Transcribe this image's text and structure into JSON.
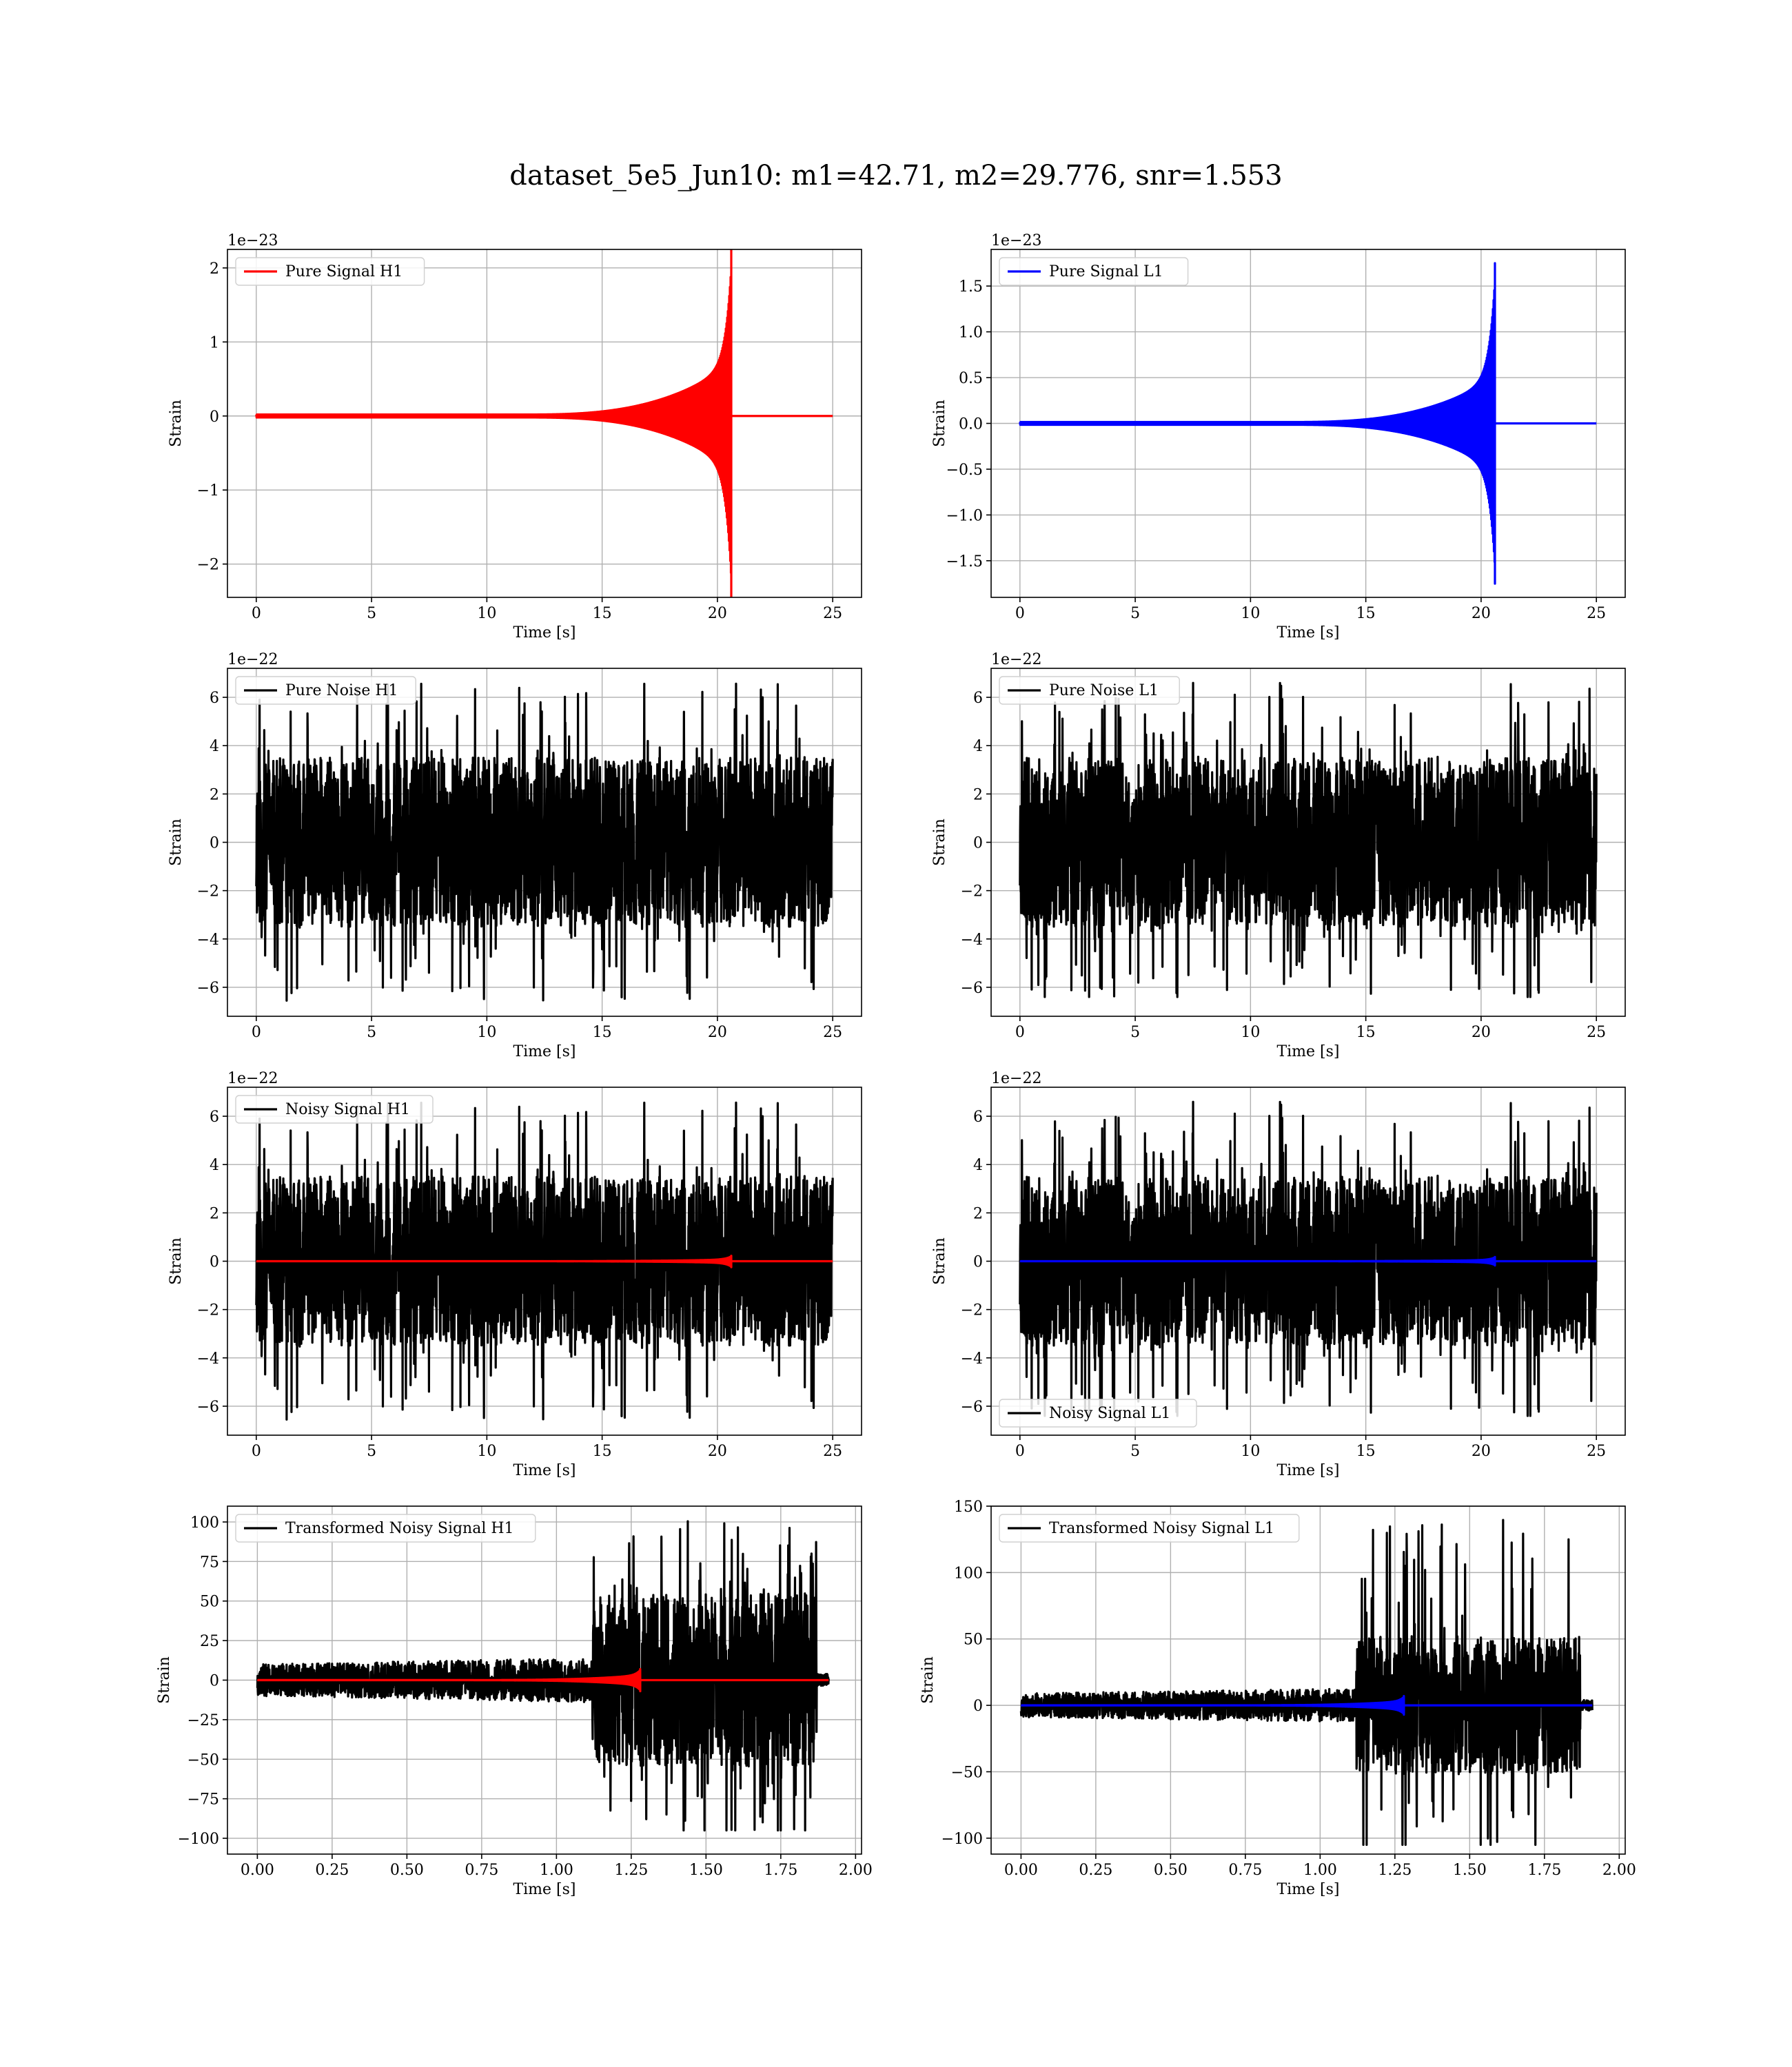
{
  "figure": {
    "suptitle": "dataset_5e5_Jun10: m1=42.71, m2=29.776, snr=1.553"
  },
  "colors": {
    "H1_signal": "#ff0000",
    "L1_signal": "#0000ff",
    "noise": "#000000",
    "grid": "#b0b0b0"
  },
  "chart_data": [
    {
      "id": "pure-signal-h1",
      "type": "line",
      "legend": [
        "Pure Signal H1"
      ],
      "legend_position": "upper-left",
      "xlabel": "Time [s]",
      "ylabel": "Strain",
      "offset_text": "1e−23",
      "xlim": [
        -1.25,
        26.25
      ],
      "ylim": [
        -2.45,
        2.25
      ],
      "xticks": [
        0,
        5,
        10,
        15,
        20,
        25
      ],
      "xtick_labels": [
        "0",
        "5",
        "10",
        "15",
        "20",
        "25"
      ],
      "yticks": [
        -2,
        -1,
        0,
        1,
        2
      ],
      "ytick_labels": [
        "−2",
        "−1",
        "0",
        "1",
        "2"
      ],
      "grid": true,
      "series": [
        {
          "color_key": "H1_signal",
          "kind": "chirp",
          "t_start": 0,
          "t_merge": 20.6,
          "t_end": 25,
          "peak_pos": 2.25,
          "peak_neg": -2.45,
          "early_amp": 0.02,
          "pre_merge_amp": 0.7
        }
      ]
    },
    {
      "id": "pure-signal-l1",
      "type": "line",
      "legend": [
        "Pure Signal L1"
      ],
      "legend_position": "upper-left",
      "xlabel": "Time [s]",
      "ylabel": "Strain",
      "offset_text": "1e−23",
      "xlim": [
        -1.25,
        26.25
      ],
      "ylim": [
        -1.9,
        1.9
      ],
      "xticks": [
        0,
        5,
        10,
        15,
        20,
        25
      ],
      "xtick_labels": [
        "0",
        "5",
        "10",
        "15",
        "20",
        "25"
      ],
      "yticks": [
        -1.5,
        -1.0,
        -0.5,
        0.0,
        0.5,
        1.0,
        1.5
      ],
      "ytick_labels": [
        "−1.5",
        "−1.0",
        "−0.5",
        "0.0",
        "0.5",
        "1.0",
        "1.5"
      ],
      "grid": true,
      "series": [
        {
          "color_key": "L1_signal",
          "kind": "chirp",
          "t_start": 0,
          "t_merge": 20.6,
          "t_end": 25,
          "peak_pos": 1.75,
          "peak_neg": -1.75,
          "early_amp": 0.015,
          "pre_merge_amp": 0.5
        }
      ]
    },
    {
      "id": "pure-noise-h1",
      "type": "line",
      "legend": [
        "Pure Noise H1"
      ],
      "legend_position": "upper-left",
      "xlabel": "Time [s]",
      "ylabel": "Strain",
      "offset_text": "1e−22",
      "xlim": [
        -1.25,
        26.25
      ],
      "ylim": [
        -7.2,
        7.2
      ],
      "xticks": [
        0,
        5,
        10,
        15,
        20,
        25
      ],
      "xtick_labels": [
        "0",
        "5",
        "10",
        "15",
        "20",
        "25"
      ],
      "yticks": [
        -6,
        -4,
        -2,
        0,
        2,
        4,
        6
      ],
      "ytick_labels": [
        "−6",
        "−4",
        "−2",
        "0",
        "2",
        "4",
        "6"
      ],
      "grid": true,
      "series": [
        {
          "color_key": "noise",
          "kind": "noise",
          "t_start": 0,
          "t_end": 25,
          "band": 3.5,
          "max_pos": 6.6,
          "max_neg": -6.6,
          "seed": 11
        }
      ]
    },
    {
      "id": "pure-noise-l1",
      "type": "line",
      "legend": [
        "Pure Noise L1"
      ],
      "legend_position": "upper-left",
      "xlabel": "Time [s]",
      "ylabel": "Strain",
      "offset_text": "1e−22",
      "xlim": [
        -1.25,
        26.25
      ],
      "ylim": [
        -7.2,
        7.2
      ],
      "xticks": [
        0,
        5,
        10,
        15,
        20,
        25
      ],
      "xtick_labels": [
        "0",
        "5",
        "10",
        "15",
        "20",
        "25"
      ],
      "yticks": [
        -6,
        -4,
        -2,
        0,
        2,
        4,
        6
      ],
      "ytick_labels": [
        "−6",
        "−4",
        "−2",
        "0",
        "2",
        "4",
        "6"
      ],
      "grid": true,
      "series": [
        {
          "color_key": "noise",
          "kind": "noise",
          "t_start": 0,
          "t_end": 25,
          "band": 3.5,
          "max_pos": 6.6,
          "max_neg": -6.4,
          "seed": 23
        }
      ]
    },
    {
      "id": "noisy-signal-h1",
      "type": "line",
      "legend": [
        "Noisy Signal H1"
      ],
      "legend_position": "upper-left",
      "xlabel": "Time [s]",
      "ylabel": "Strain",
      "offset_text": "1e−22",
      "xlim": [
        -1.25,
        26.25
      ],
      "ylim": [
        -7.2,
        7.2
      ],
      "xticks": [
        0,
        5,
        10,
        15,
        20,
        25
      ],
      "xtick_labels": [
        "0",
        "5",
        "10",
        "15",
        "20",
        "25"
      ],
      "yticks": [
        -6,
        -4,
        -2,
        0,
        2,
        4,
        6
      ],
      "ytick_labels": [
        "−6",
        "−4",
        "−2",
        "0",
        "2",
        "4",
        "6"
      ],
      "grid": true,
      "series": [
        {
          "color_key": "noise",
          "kind": "noise",
          "t_start": 0,
          "t_end": 25,
          "band": 3.5,
          "max_pos": 6.6,
          "max_neg": -6.6,
          "seed": 11
        },
        {
          "color_key": "H1_signal",
          "kind": "chirp",
          "t_start": 0,
          "t_merge": 20.6,
          "t_end": 25,
          "peak_pos": 0.225,
          "peak_neg": -0.245,
          "early_amp": 0.002,
          "pre_merge_amp": 0.07
        }
      ]
    },
    {
      "id": "noisy-signal-l1",
      "type": "line",
      "legend": [
        "Noisy Signal L1"
      ],
      "legend_position": "lower-left",
      "xlabel": "Time [s]",
      "ylabel": "Strain",
      "offset_text": "1e−22",
      "xlim": [
        -1.25,
        26.25
      ],
      "ylim": [
        -7.2,
        7.2
      ],
      "xticks": [
        0,
        5,
        10,
        15,
        20,
        25
      ],
      "xtick_labels": [
        "0",
        "5",
        "10",
        "15",
        "20",
        "25"
      ],
      "yticks": [
        -6,
        -4,
        -2,
        0,
        2,
        4,
        6
      ],
      "ytick_labels": [
        "−6",
        "−4",
        "−2",
        "0",
        "2",
        "4",
        "6"
      ],
      "grid": true,
      "series": [
        {
          "color_key": "noise",
          "kind": "noise",
          "t_start": 0,
          "t_end": 25,
          "band": 3.5,
          "max_pos": 6.6,
          "max_neg": -6.4,
          "seed": 23
        },
        {
          "color_key": "L1_signal",
          "kind": "chirp",
          "t_start": 0,
          "t_merge": 20.6,
          "t_end": 25,
          "peak_pos": 0.175,
          "peak_neg": -0.175,
          "early_amp": 0.0015,
          "pre_merge_amp": 0.05
        }
      ]
    },
    {
      "id": "transformed-noisy-signal-h1",
      "type": "line",
      "legend": [
        "Transformed Noisy Signal H1"
      ],
      "legend_position": "upper-left",
      "xlabel": "Time [s]",
      "ylabel": "Strain",
      "offset_text": "",
      "xlim": [
        -0.1,
        2.02
      ],
      "ylim": [
        -110,
        110
      ],
      "xticks": [
        0.0,
        0.25,
        0.5,
        0.75,
        1.0,
        1.25,
        1.5,
        1.75,
        2.0
      ],
      "xtick_labels": [
        "0.00",
        "0.25",
        "0.50",
        "0.75",
        "1.00",
        "1.25",
        "1.50",
        "1.75",
        "2.00"
      ],
      "yticks": [
        -100,
        -75,
        -50,
        -25,
        0,
        25,
        50,
        75,
        100
      ],
      "ytick_labels": [
        "−100",
        "−75",
        "−50",
        "−25",
        "0",
        "25",
        "50",
        "75",
        "100"
      ],
      "grid": true,
      "series": [
        {
          "color_key": "noise",
          "kind": "twoband",
          "t_start": 0,
          "t_switch": 1.12,
          "t_end": 1.87,
          "t_tail": 1.91,
          "band_low": 10,
          "band_high": 55,
          "max_pos": 103,
          "max_neg": -95,
          "seed": 37
        },
        {
          "color_key": "H1_signal",
          "kind": "chirp",
          "t_start": 0,
          "t_merge": 1.28,
          "t_end": 1.91,
          "peak_pos": 7,
          "peak_neg": -7,
          "early_amp": 0.05,
          "pre_merge_amp": 3
        }
      ]
    },
    {
      "id": "transformed-noisy-signal-l1",
      "type": "line",
      "legend": [
        "Transformed Noisy Signal L1"
      ],
      "legend_position": "upper-left",
      "xlabel": "Time [s]",
      "ylabel": "Strain",
      "offset_text": "",
      "xlim": [
        -0.1,
        2.02
      ],
      "ylim": [
        -112,
        150
      ],
      "xticks": [
        0.0,
        0.25,
        0.5,
        0.75,
        1.0,
        1.25,
        1.5,
        1.75,
        2.0
      ],
      "xtick_labels": [
        "0.00",
        "0.25",
        "0.50",
        "0.75",
        "1.00",
        "1.25",
        "1.50",
        "1.75",
        "2.00"
      ],
      "yticks": [
        -100,
        -50,
        0,
        50,
        100,
        150
      ],
      "ytick_labels": [
        "−100",
        "−50",
        "0",
        "50",
        "100",
        "150"
      ],
      "grid": true,
      "series": [
        {
          "color_key": "noise",
          "kind": "twoband",
          "t_start": 0,
          "t_switch": 1.12,
          "t_end": 1.87,
          "t_tail": 1.91,
          "band_low": 9,
          "band_high": 52,
          "max_pos": 141,
          "max_neg": -105,
          "seed": 53
        },
        {
          "color_key": "L1_signal",
          "kind": "chirp",
          "t_start": 0,
          "t_merge": 1.28,
          "t_end": 1.91,
          "peak_pos": 7,
          "peak_neg": -7,
          "early_amp": 0.05,
          "pre_merge_amp": 3
        }
      ]
    }
  ]
}
